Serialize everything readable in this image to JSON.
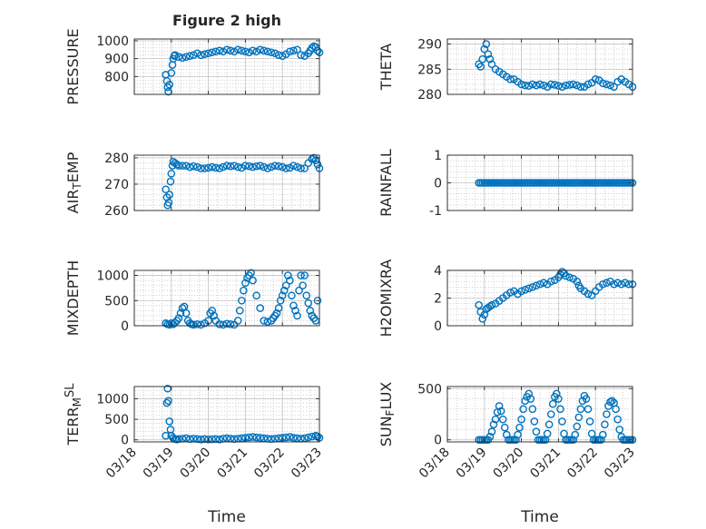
{
  "figure": {
    "title": "Figure 2 high",
    "shared_xlabel": "Time"
  },
  "colors": {
    "marker": "#0072BD",
    "axis": "#262626",
    "grid": "#b3b3b3"
  },
  "chart_data": [
    {
      "type": "scatter",
      "id": "pressure",
      "ylabel_parts": [
        {
          "t": "PRESSURE"
        }
      ],
      "ylim": [
        700,
        1010
      ],
      "yticks": [
        {
          "value": 800,
          "label": "800"
        },
        {
          "value": 900,
          "label": "900"
        },
        {
          "value": 1000,
          "label": "1000"
        }
      ],
      "x": [
        18.85,
        18.88,
        18.9,
        18.92,
        18.95,
        19.0,
        19.03,
        19.05,
        19.08,
        19.1,
        19.2,
        19.3,
        19.4,
        19.5,
        19.6,
        19.7,
        19.8,
        19.9,
        20.0,
        20.1,
        20.2,
        20.3,
        20.4,
        20.5,
        20.6,
        20.7,
        20.8,
        20.9,
        21.0,
        21.1,
        21.2,
        21.3,
        21.4,
        21.5,
        21.6,
        21.7,
        21.8,
        21.9,
        22.0,
        22.1,
        22.2,
        22.3,
        22.4,
        22.5,
        22.6,
        22.7,
        22.75,
        22.8,
        22.85,
        22.9,
        22.95,
        23.0
      ],
      "y": [
        810,
        775,
        740,
        715,
        755,
        820,
        865,
        900,
        915,
        920,
        910,
        905,
        910,
        915,
        920,
        930,
        920,
        925,
        930,
        935,
        940,
        945,
        940,
        950,
        945,
        940,
        950,
        945,
        940,
        935,
        945,
        940,
        950,
        945,
        940,
        935,
        930,
        920,
        915,
        925,
        940,
        945,
        950,
        920,
        915,
        930,
        945,
        960,
        970,
        965,
        945,
        935
      ]
    },
    {
      "type": "scatter",
      "id": "theta",
      "ylabel_parts": [
        {
          "t": "THETA"
        }
      ],
      "ylim": [
        280,
        291
      ],
      "yticks": [
        {
          "value": 280,
          "label": "280"
        },
        {
          "value": 285,
          "label": "285"
        },
        {
          "value": 290,
          "label": "290"
        }
      ],
      "x": [
        18.85,
        18.9,
        18.95,
        19.0,
        19.05,
        19.1,
        19.15,
        19.2,
        19.3,
        19.4,
        19.5,
        19.6,
        19.7,
        19.8,
        19.9,
        20.0,
        20.1,
        20.2,
        20.3,
        20.4,
        20.5,
        20.6,
        20.7,
        20.8,
        20.9,
        21.0,
        21.1,
        21.2,
        21.3,
        21.4,
        21.5,
        21.6,
        21.7,
        21.8,
        21.9,
        22.0,
        22.1,
        22.2,
        22.3,
        22.4,
        22.5,
        22.6,
        22.7,
        22.8,
        22.9,
        23.0
      ],
      "y": [
        286,
        285.5,
        287,
        289,
        290,
        288,
        287,
        286,
        285,
        284.5,
        284,
        283.5,
        283,
        283,
        282.5,
        282,
        281.8,
        281.7,
        282,
        281.8,
        282,
        281.8,
        281.5,
        282,
        281.9,
        281.7,
        281.5,
        281.8,
        281.9,
        282,
        281.8,
        281.5,
        281.5,
        282,
        282.3,
        283,
        282.8,
        282.2,
        282,
        281.8,
        281.5,
        282.5,
        283,
        282.5,
        282,
        281.5
      ]
    },
    {
      "type": "scatter",
      "id": "air_temp",
      "ylabel_parts": [
        {
          "t": "AIR"
        },
        {
          "t": "T",
          "sub": true
        },
        {
          "t": "EMP"
        }
      ],
      "ylim": [
        260,
        281
      ],
      "yticks": [
        {
          "value": 260,
          "label": "260"
        },
        {
          "value": 270,
          "label": "270"
        },
        {
          "value": 280,
          "label": "280"
        }
      ],
      "x": [
        18.85,
        18.88,
        18.9,
        18.93,
        18.95,
        18.98,
        19.0,
        19.03,
        19.05,
        19.1,
        19.15,
        19.2,
        19.3,
        19.4,
        19.5,
        19.6,
        19.7,
        19.8,
        19.9,
        20.0,
        20.1,
        20.2,
        20.3,
        20.4,
        20.5,
        20.6,
        20.7,
        20.8,
        20.9,
        21.0,
        21.1,
        21.2,
        21.3,
        21.4,
        21.5,
        21.6,
        21.7,
        21.8,
        21.9,
        22.0,
        22.1,
        22.2,
        22.3,
        22.4,
        22.5,
        22.6,
        22.7,
        22.8,
        22.85,
        22.9,
        22.95,
        23.0
      ],
      "y": [
        268,
        265,
        262,
        263,
        266,
        271,
        274,
        277,
        278.5,
        278,
        277.5,
        277,
        277,
        277,
        276.5,
        276.8,
        276.5,
        276,
        276,
        276.2,
        276.5,
        276.2,
        276,
        276.5,
        277,
        276.8,
        277,
        276.5,
        276.2,
        277,
        276.8,
        276.5,
        276.8,
        277,
        276.5,
        276,
        276.5,
        277,
        276.8,
        276.5,
        276,
        276.2,
        277,
        276.5,
        276,
        276,
        278,
        279.5,
        280,
        279,
        277.5,
        276
      ]
    },
    {
      "type": "scatter",
      "id": "rainfall",
      "ylabel_parts": [
        {
          "t": "RAINFALL"
        }
      ],
      "ylim": [
        -1,
        1
      ],
      "yticks": [
        {
          "value": -1,
          "label": "-1"
        },
        {
          "value": 0,
          "label": "0"
        },
        {
          "value": 1,
          "label": "1"
        }
      ],
      "x": [
        18.85,
        18.9,
        18.95,
        19.0,
        19.05,
        19.1,
        19.15,
        19.2,
        19.25,
        19.3,
        19.35,
        19.4,
        19.45,
        19.5,
        19.55,
        19.6,
        19.65,
        19.7,
        19.75,
        19.8,
        19.85,
        19.9,
        19.95,
        20.0,
        20.05,
        20.1,
        20.15,
        20.2,
        20.25,
        20.3,
        20.35,
        20.4,
        20.45,
        20.5,
        20.55,
        20.6,
        20.65,
        20.7,
        20.75,
        20.8,
        20.85,
        20.9,
        20.95,
        21.0,
        21.05,
        21.1,
        21.15,
        21.2,
        21.25,
        21.3,
        21.35,
        21.4,
        21.45,
        21.5,
        21.55,
        21.6,
        21.65,
        21.7,
        21.75,
        21.8,
        21.85,
        21.9,
        21.95,
        22.0,
        22.05,
        22.1,
        22.15,
        22.2,
        22.25,
        22.3,
        22.35,
        22.4,
        22.45,
        22.5,
        22.55,
        22.6,
        22.65,
        22.7,
        22.75,
        22.8,
        22.85,
        22.9,
        22.95,
        23.0
      ],
      "y": [
        0,
        0,
        0,
        0,
        0,
        0,
        0,
        0,
        0,
        0,
        0,
        0,
        0,
        0,
        0,
        0,
        0,
        0,
        0,
        0,
        0,
        0,
        0,
        0,
        0,
        0,
        0,
        0,
        0,
        0,
        0,
        0,
        0,
        0,
        0,
        0,
        0,
        0,
        0,
        0,
        0,
        0,
        0,
        0,
        0,
        0,
        0,
        0,
        0,
        0,
        0,
        0,
        0,
        0,
        0,
        0,
        0,
        0,
        0,
        0,
        0,
        0,
        0,
        0,
        0,
        0,
        0,
        0,
        0,
        0,
        0,
        0,
        0,
        0,
        0,
        0,
        0,
        0,
        0,
        0,
        0,
        0,
        0,
        0
      ]
    },
    {
      "type": "scatter",
      "id": "mixdepth",
      "ylabel_parts": [
        {
          "t": "MIXDEPTH"
        }
      ],
      "ylim": [
        0,
        1100
      ],
      "yticks": [
        {
          "value": 0,
          "label": "0"
        },
        {
          "value": 500,
          "label": "500"
        },
        {
          "value": 1000,
          "label": "1000"
        }
      ],
      "x": [
        18.85,
        18.9,
        18.95,
        19.0,
        19.05,
        19.1,
        19.15,
        19.2,
        19.25,
        19.3,
        19.35,
        19.4,
        19.45,
        19.5,
        19.55,
        19.6,
        19.7,
        19.8,
        19.9,
        20.0,
        20.05,
        20.1,
        20.15,
        20.2,
        20.3,
        20.4,
        20.5,
        20.6,
        20.7,
        20.8,
        20.85,
        20.9,
        20.95,
        21.0,
        21.05,
        21.1,
        21.15,
        21.2,
        21.3,
        21.4,
        21.5,
        21.6,
        21.7,
        21.75,
        21.8,
        21.85,
        21.9,
        21.95,
        22.0,
        22.05,
        22.1,
        22.15,
        22.2,
        22.25,
        22.3,
        22.35,
        22.4,
        22.45,
        22.5,
        22.55,
        22.6,
        22.65,
        22.7,
        22.75,
        22.8,
        22.85,
        22.9,
        22.95
      ],
      "y": [
        50,
        30,
        20,
        50,
        30,
        60,
        100,
        150,
        250,
        350,
        380,
        250,
        100,
        50,
        30,
        20,
        30,
        20,
        50,
        100,
        250,
        300,
        200,
        100,
        30,
        20,
        40,
        30,
        20,
        100,
        300,
        500,
        700,
        850,
        950,
        1000,
        1050,
        900,
        600,
        350,
        100,
        80,
        100,
        150,
        200,
        250,
        350,
        500,
        600,
        700,
        800,
        1000,
        900,
        600,
        400,
        300,
        200,
        700,
        1000,
        800,
        1000,
        600,
        450,
        300,
        200,
        150,
        100,
        500
      ]
    },
    {
      "type": "scatter",
      "id": "h2omixra",
      "ylabel_parts": [
        {
          "t": "H2OMIXRA"
        }
      ],
      "ylim": [
        0,
        4
      ],
      "yticks": [
        {
          "value": 0,
          "label": "0"
        },
        {
          "value": 2,
          "label": "2"
        },
        {
          "value": 4,
          "label": "4"
        }
      ],
      "x": [
        18.85,
        18.9,
        18.95,
        19.0,
        19.05,
        19.1,
        19.15,
        19.2,
        19.3,
        19.4,
        19.5,
        19.6,
        19.7,
        19.8,
        19.9,
        20.0,
        20.1,
        20.2,
        20.3,
        20.4,
        20.5,
        20.6,
        20.7,
        20.8,
        20.9,
        21.0,
        21.05,
        21.1,
        21.15,
        21.2,
        21.3,
        21.4,
        21.5,
        21.55,
        21.6,
        21.7,
        21.8,
        21.9,
        22.0,
        22.1,
        22.2,
        22.3,
        22.4,
        22.5,
        22.6,
        22.7,
        22.8,
        22.9,
        23.0
      ],
      "y": [
        1.5,
        1.0,
        0.5,
        0.8,
        1.2,
        1.3,
        1.4,
        1.5,
        1.6,
        1.8,
        2.0,
        2.2,
        2.4,
        2.5,
        2.3,
        2.5,
        2.6,
        2.7,
        2.8,
        2.9,
        3.0,
        3.1,
        3.0,
        3.2,
        3.3,
        3.5,
        3.7,
        3.9,
        3.8,
        3.6,
        3.5,
        3.4,
        3.2,
        2.9,
        2.7,
        2.5,
        2.3,
        2.2,
        2.5,
        2.8,
        3.0,
        3.1,
        3.2,
        3.0,
        3.1,
        3.0,
        3.1,
        3.0,
        3.0
      ]
    },
    {
      "type": "scatter",
      "id": "terr_msl",
      "ylabel_parts": [
        {
          "t": "TERR"
        },
        {
          "t": "M",
          "sub": true
        },
        {
          "t": "SL",
          "sup": true
        }
      ],
      "ylim": [
        -50,
        1300
      ],
      "yticks": [
        {
          "value": 0,
          "label": "0"
        },
        {
          "value": 500,
          "label": "500"
        },
        {
          "value": 1000,
          "label": "1000"
        }
      ],
      "x": [
        18.85,
        18.88,
        18.9,
        18.92,
        18.95,
        18.98,
        19.0,
        19.05,
        19.1,
        19.15,
        19.2,
        19.3,
        19.4,
        19.5,
        19.6,
        19.7,
        19.8,
        19.9,
        20.0,
        20.1,
        20.2,
        20.3,
        20.4,
        20.5,
        20.6,
        20.7,
        20.8,
        20.9,
        21.0,
        21.1,
        21.2,
        21.3,
        21.4,
        21.5,
        21.6,
        21.7,
        21.8,
        21.9,
        22.0,
        22.1,
        22.2,
        22.3,
        22.4,
        22.5,
        22.6,
        22.7,
        22.8,
        22.9,
        22.95,
        23.0
      ],
      "y": [
        100,
        900,
        1250,
        950,
        450,
        250,
        100,
        50,
        20,
        10,
        20,
        30,
        40,
        20,
        30,
        20,
        10,
        20,
        10,
        15,
        20,
        10,
        30,
        40,
        30,
        20,
        30,
        40,
        50,
        60,
        70,
        60,
        50,
        40,
        30,
        20,
        30,
        40,
        50,
        60,
        70,
        50,
        40,
        30,
        40,
        60,
        80,
        100,
        80,
        50
      ]
    },
    {
      "type": "scatter",
      "id": "sun_flux",
      "ylabel_parts": [
        {
          "t": "SUN"
        },
        {
          "t": "F",
          "sub": true
        },
        {
          "t": "LUX"
        }
      ],
      "ylim": [
        -20,
        520
      ],
      "yticks": [
        {
          "value": 0,
          "label": "0"
        },
        {
          "value": 500,
          "label": "500"
        }
      ],
      "x": [
        18.85,
        18.9,
        18.95,
        19.0,
        19.05,
        19.1,
        19.15,
        19.2,
        19.25,
        19.3,
        19.35,
        19.4,
        19.45,
        19.5,
        19.55,
        19.6,
        19.65,
        19.7,
        19.75,
        19.8,
        19.85,
        19.9,
        19.95,
        20.0,
        20.05,
        20.1,
        20.15,
        20.2,
        20.25,
        20.3,
        20.35,
        20.4,
        20.45,
        20.5,
        20.55,
        20.6,
        20.65,
        20.7,
        20.75,
        20.8,
        20.85,
        20.9,
        20.95,
        21.0,
        21.05,
        21.1,
        21.15,
        21.2,
        21.25,
        21.3,
        21.35,
        21.4,
        21.45,
        21.5,
        21.55,
        21.6,
        21.65,
        21.7,
        21.75,
        21.8,
        21.85,
        21.9,
        21.95,
        22.0,
        22.05,
        22.1,
        22.15,
        22.2,
        22.25,
        22.3,
        22.35,
        22.4,
        22.45,
        22.5,
        22.55,
        22.6,
        22.65,
        22.7,
        22.75,
        22.8,
        22.85,
        22.9,
        22.95,
        23.0
      ],
      "y": [
        0,
        0,
        0,
        0,
        0,
        0,
        30,
        80,
        150,
        200,
        270,
        330,
        280,
        200,
        120,
        50,
        0,
        0,
        0,
        0,
        0,
        50,
        120,
        200,
        300,
        380,
        420,
        450,
        400,
        300,
        180,
        80,
        0,
        0,
        0,
        0,
        0,
        60,
        150,
        250,
        350,
        420,
        450,
        400,
        300,
        180,
        60,
        0,
        0,
        0,
        0,
        0,
        50,
        130,
        220,
        300,
        380,
        430,
        400,
        300,
        180,
        60,
        0,
        0,
        0,
        0,
        0,
        50,
        150,
        250,
        330,
        370,
        380,
        360,
        300,
        200,
        100,
        30,
        0,
        0,
        0,
        0,
        0,
        0
      ]
    }
  ],
  "x_axis": {
    "xlim": [
      18,
      23
    ],
    "ticks": [
      {
        "value": 18,
        "label": "03/18"
      },
      {
        "value": 19,
        "label": "03/19"
      },
      {
        "value": 20,
        "label": "03/20"
      },
      {
        "value": 21,
        "label": "03/21"
      },
      {
        "value": 22,
        "label": "03/22"
      },
      {
        "value": 23,
        "label": "03/23"
      }
    ],
    "minor_step": 0.25
  }
}
